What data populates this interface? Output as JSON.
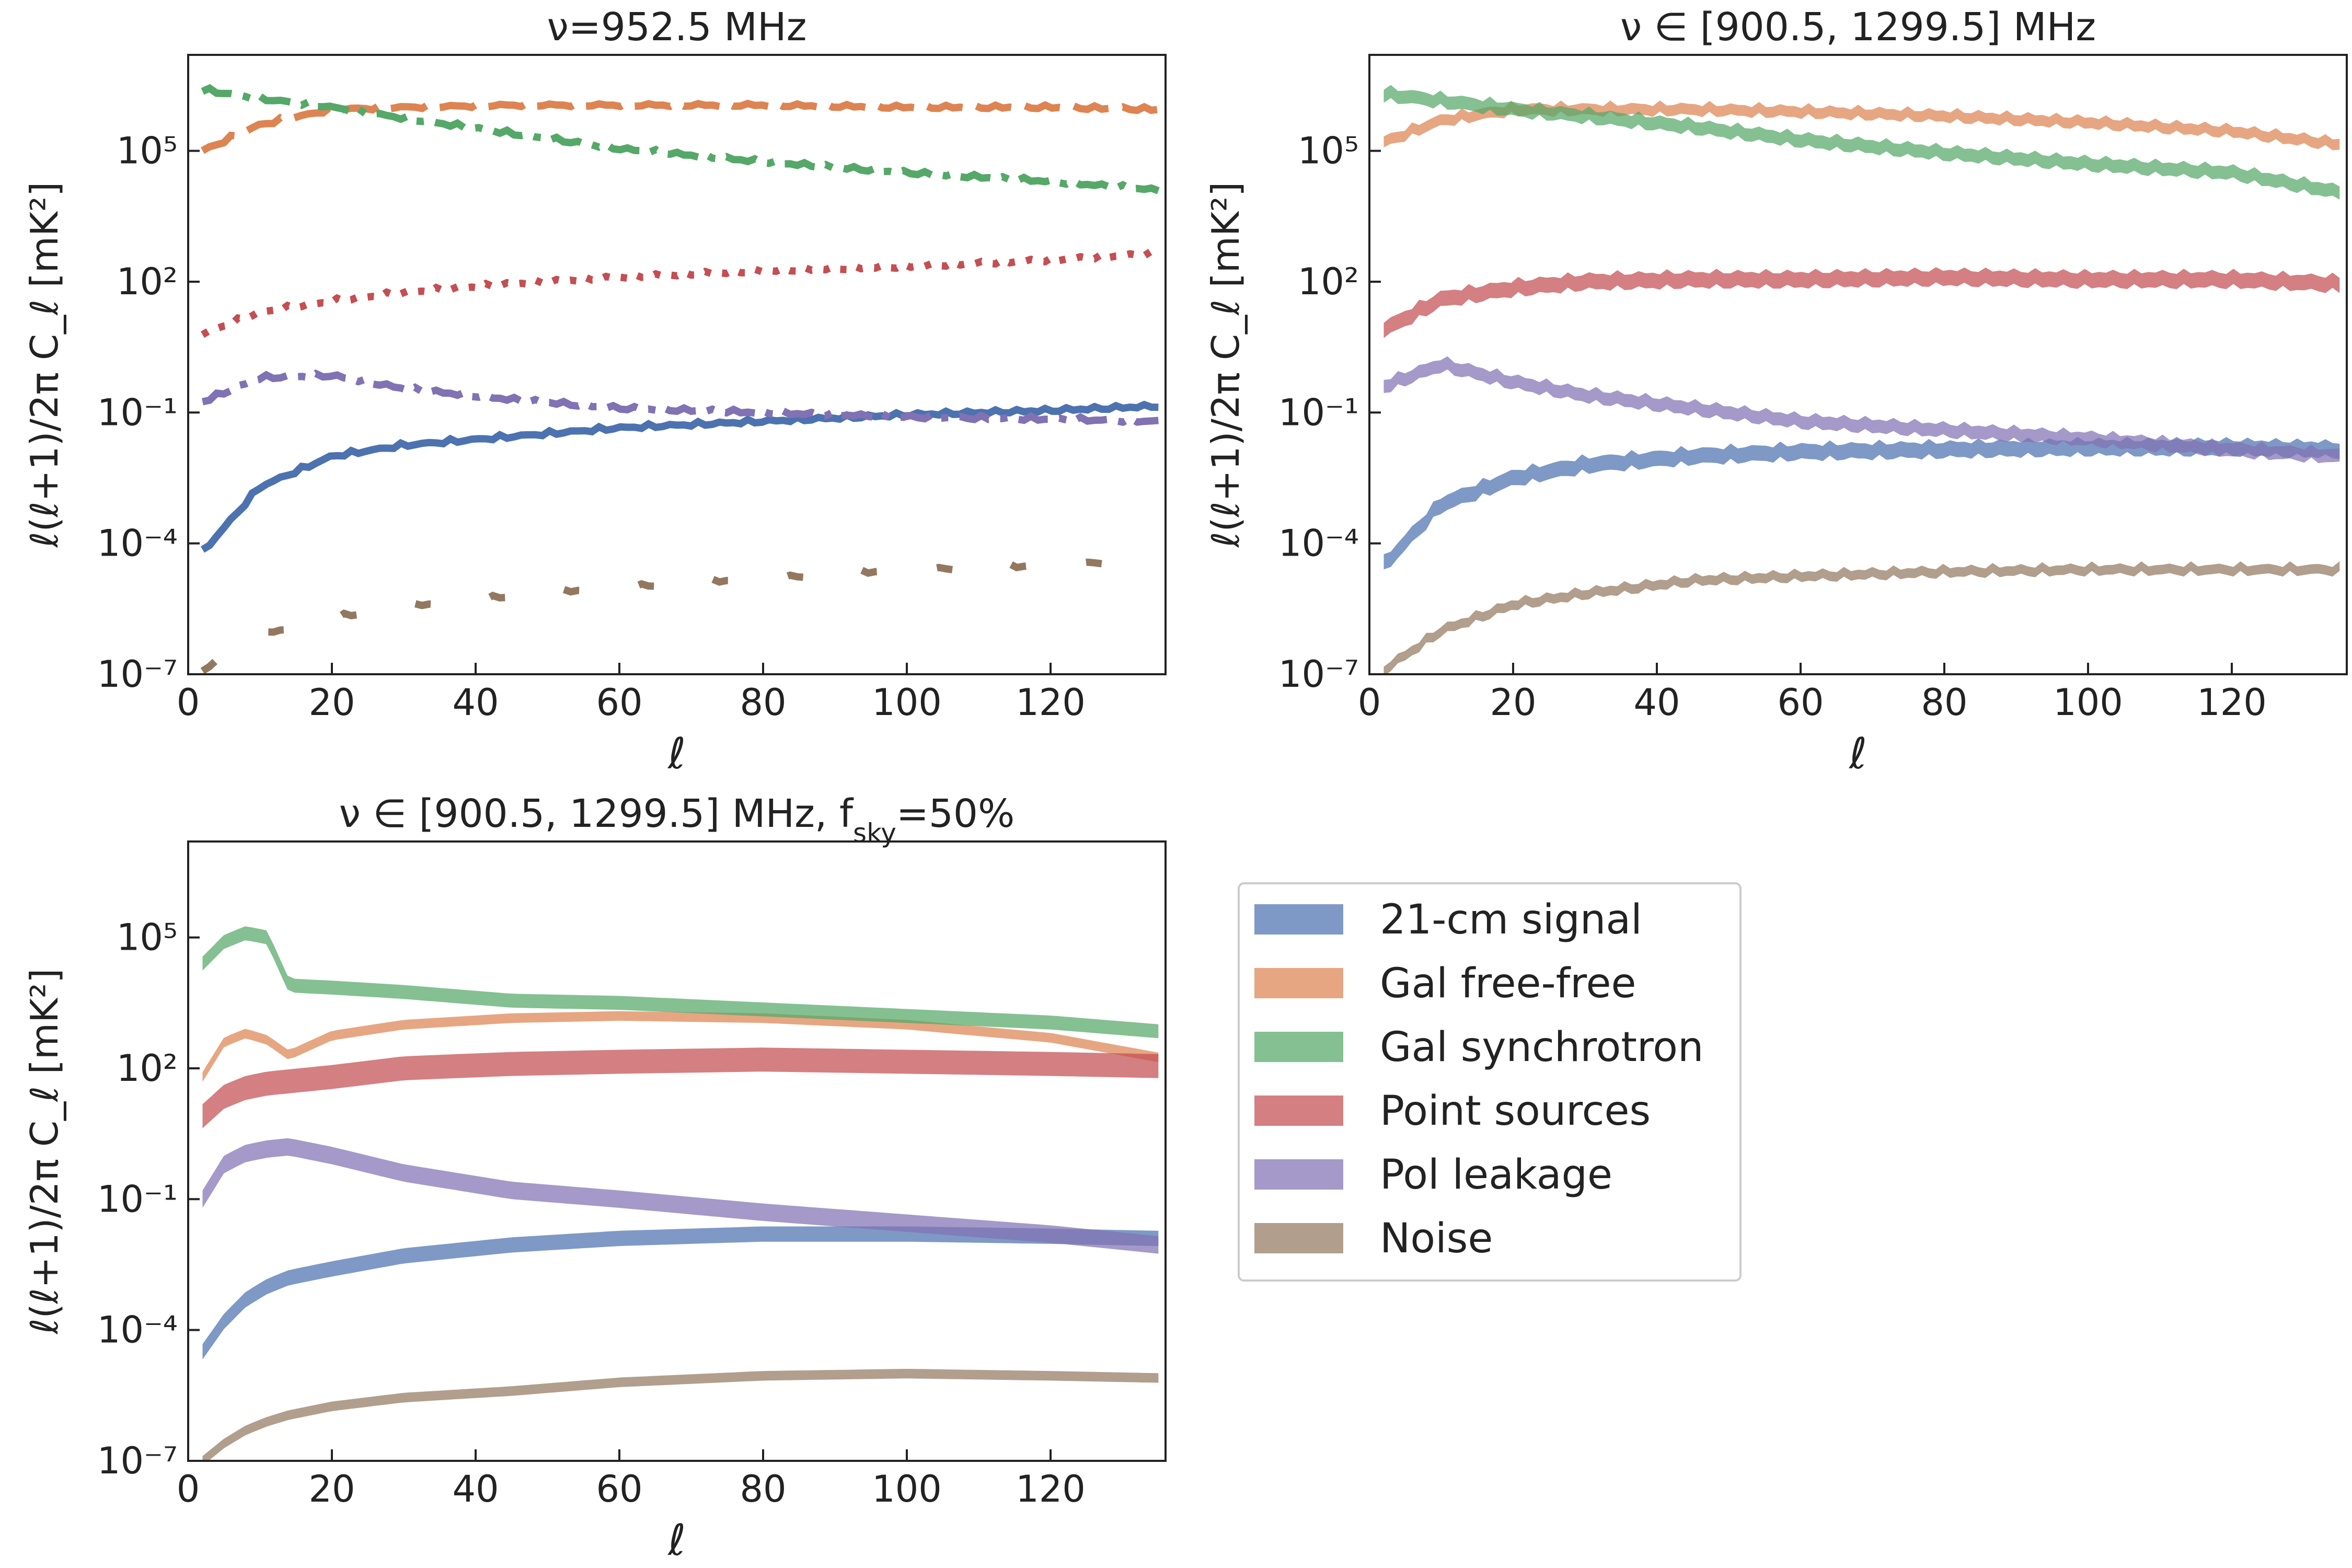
{
  "colors": {
    "signal": "#4c72b0",
    "freefree": "#dd8452",
    "synchrotron": "#55a868",
    "pointsources": "#c44e52",
    "polleakage": "#8172b3",
    "noise": "#937860"
  },
  "legend": {
    "placement": "right of bottom-left panel",
    "entries": [
      {
        "label": "21-cm signal",
        "color": "#4c72b0"
      },
      {
        "label": "Gal free-free",
        "color": "#dd8452"
      },
      {
        "label": "Gal synchrotron",
        "color": "#55a868"
      },
      {
        "label": "Point sources",
        "color": "#c44e52"
      },
      {
        "label": "Pol leakage",
        "color": "#8172b3"
      },
      {
        "label": "Noise",
        "color": "#937860"
      }
    ]
  },
  "chart_data": [
    {
      "type": "line",
      "title": "ν=952.5 MHz",
      "xlabel": "ℓ",
      "ylabel": "ℓ(ℓ+1)/2π C_ℓ [mK²]",
      "xlim": [
        0,
        136
      ],
      "ylim_log10": [
        -7,
        7.2
      ],
      "yscale": "log",
      "xticks": [
        0,
        20,
        40,
        60,
        80,
        100,
        120
      ],
      "yticks_log10": [
        -7,
        -4,
        -1,
        2,
        5
      ],
      "ytick_labels": [
        "10⁻⁷",
        "10⁻⁴",
        "10⁻¹",
        "10²",
        "10⁵"
      ],
      "x": [
        2,
        10,
        20,
        30,
        45,
        60,
        80,
        100,
        120,
        135
      ],
      "series": [
        {
          "key": "signal",
          "style": "solid",
          "log10_values": [
            -4.2,
            -2.7,
            -2.0,
            -1.75,
            -1.55,
            -1.35,
            -1.2,
            -1.05,
            -0.95,
            -0.85
          ]
        },
        {
          "key": "freefree",
          "style": "dashed",
          "log10_values": [
            5.0,
            5.6,
            5.95,
            6.0,
            6.05,
            6.05,
            6.05,
            6.0,
            6.0,
            5.95
          ]
        },
        {
          "key": "synchrotron",
          "style": "dashdot",
          "log10_values": [
            6.4,
            6.2,
            6.0,
            5.75,
            5.4,
            5.05,
            4.75,
            4.5,
            4.3,
            4.1
          ]
        },
        {
          "key": "pointsources",
          "style": "dotted",
          "log10_values": [
            0.8,
            1.3,
            1.55,
            1.75,
            1.95,
            2.1,
            2.25,
            2.35,
            2.5,
            2.65
          ]
        },
        {
          "key": "polleakage",
          "style": "dashdot",
          "log10_values": [
            -0.75,
            -0.2,
            -0.15,
            -0.45,
            -0.7,
            -0.9,
            -1.0,
            -1.1,
            -1.15,
            -1.2
          ]
        },
        {
          "key": "noise",
          "style": "dashed-sparse",
          "log10_values": [
            -6.9,
            -6.1,
            -5.7,
            -5.45,
            -5.2,
            -5.0,
            -4.8,
            -4.6,
            -4.5,
            -4.35
          ]
        }
      ]
    },
    {
      "type": "area",
      "title": "ν ∈ [900.5, 1299.5] MHz",
      "xlabel": "ℓ",
      "ylabel": "ℓ(ℓ+1)/2π C_ℓ [mK²]",
      "xlim": [
        0,
        136
      ],
      "ylim_log10": [
        -7,
        7.2
      ],
      "yscale": "log",
      "xticks": [
        0,
        20,
        40,
        60,
        80,
        100,
        120
      ],
      "yticks_log10": [
        -7,
        -4,
        -1,
        2,
        5
      ],
      "ytick_labels": [
        "10⁻⁷",
        "10⁻⁴",
        "10⁻¹",
        "10²",
        "10⁵"
      ],
      "x": [
        2,
        10,
        20,
        30,
        45,
        60,
        80,
        100,
        120,
        135
      ],
      "series": [
        {
          "key": "signal",
          "log10_values": [
            -4.5,
            -3.1,
            -2.5,
            -2.2,
            -2.0,
            -1.9,
            -1.85,
            -1.8,
            -1.8,
            -1.85
          ],
          "band_log10": 0.35
        },
        {
          "key": "freefree",
          "log10_values": [
            5.2,
            5.7,
            5.95,
            5.95,
            5.95,
            5.9,
            5.8,
            5.65,
            5.45,
            5.15
          ],
          "band_log10": 0.25
        },
        {
          "key": "synchrotron",
          "log10_values": [
            6.3,
            6.15,
            5.95,
            5.8,
            5.55,
            5.25,
            4.95,
            4.7,
            4.5,
            4.05
          ],
          "band_log10": 0.3
        },
        {
          "key": "pointsources",
          "log10_values": [
            0.9,
            1.6,
            1.85,
            2.0,
            2.05,
            2.05,
            2.1,
            2.05,
            2.05,
            1.95
          ],
          "band_log10": 0.35
        },
        {
          "key": "polleakage",
          "log10_values": [
            -0.4,
            0.1,
            -0.3,
            -0.6,
            -0.9,
            -1.2,
            -1.4,
            -1.6,
            -1.85,
            -2.0
          ],
          "band_log10": 0.3
        },
        {
          "key": "noise",
          "log10_values": [
            -6.9,
            -6.0,
            -5.4,
            -5.15,
            -4.85,
            -4.75,
            -4.65,
            -4.6,
            -4.6,
            -4.6
          ],
          "band_log10": 0.22
        }
      ]
    },
    {
      "type": "area",
      "title": "ν ∈ [900.5, 1299.5] MHz, f",
      "title_sub": "sky",
      "title_tail": "=50%",
      "xlabel": "ℓ",
      "ylabel": "ℓ(ℓ+1)/2π C_ℓ [mK²]",
      "xlim": [
        0,
        136
      ],
      "ylim_log10": [
        -7,
        7.2
      ],
      "yscale": "log",
      "xticks": [
        0,
        20,
        40,
        60,
        80,
        100,
        120
      ],
      "yticks_log10": [
        -7,
        -4,
        -1,
        2,
        5
      ],
      "ytick_labels": [
        "10⁻⁷",
        "10⁻⁴",
        "10⁻¹",
        "10²",
        "10⁵"
      ],
      "x": [
        2,
        5,
        8,
        11,
        14,
        20,
        30,
        45,
        60,
        80,
        100,
        120,
        135
      ],
      "series": [
        {
          "key": "signal",
          "log10_values": [
            -4.5,
            -3.8,
            -3.3,
            -3.0,
            -2.8,
            -2.6,
            -2.3,
            -2.05,
            -1.9,
            -1.8,
            -1.8,
            -1.85,
            -1.9
          ],
          "band_log10": 0.35
        },
        {
          "key": "freefree",
          "log10_values": [
            1.8,
            2.6,
            2.8,
            2.65,
            2.3,
            2.75,
            3.0,
            3.15,
            3.2,
            3.15,
            3.0,
            2.7,
            2.25
          ],
          "band_log10": 0.22
        },
        {
          "key": "synchrotron",
          "log10_values": [
            4.4,
            4.9,
            5.1,
            5.0,
            3.9,
            3.85,
            3.75,
            3.55,
            3.5,
            3.35,
            3.2,
            3.05,
            2.85
          ],
          "band_log10": 0.32
        },
        {
          "key": "pointsources",
          "log10_values": [
            0.9,
            1.35,
            1.55,
            1.65,
            1.7,
            1.8,
            2.0,
            2.1,
            2.15,
            2.2,
            2.15,
            2.1,
            2.05
          ],
          "band_log10": 0.55
        },
        {
          "key": "polleakage",
          "log10_values": [
            -1.0,
            -0.2,
            0.05,
            0.15,
            0.2,
            0.0,
            -0.4,
            -0.8,
            -1.0,
            -1.3,
            -1.55,
            -1.8,
            -2.05
          ],
          "band_log10": 0.4
        },
        {
          "key": "noise",
          "log10_values": [
            -7.0,
            -6.6,
            -6.3,
            -6.1,
            -5.95,
            -5.75,
            -5.55,
            -5.4,
            -5.2,
            -5.05,
            -5.0,
            -5.05,
            -5.1
          ],
          "band_log10": 0.22
        }
      ]
    }
  ]
}
